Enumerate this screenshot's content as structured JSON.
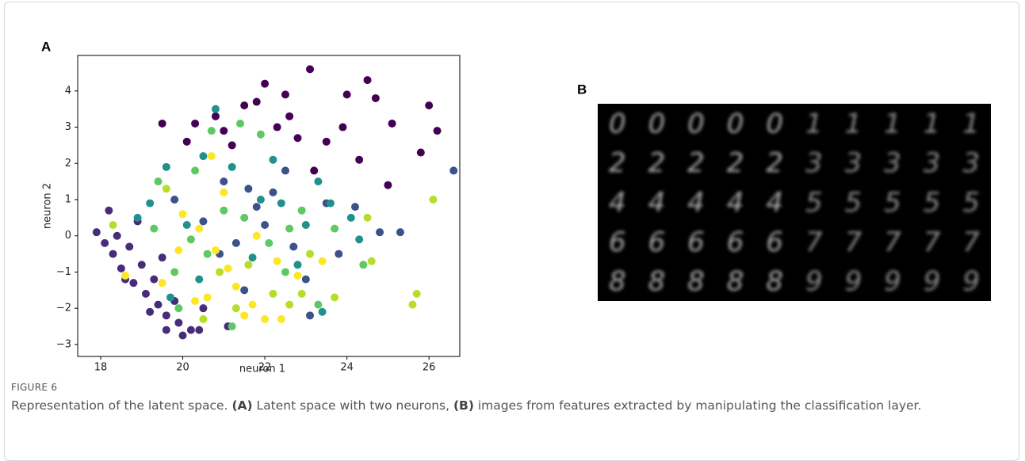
{
  "panel_a": {
    "label": "A",
    "chart_data": {
      "type": "scatter",
      "xlabel": "neuron 1",
      "ylabel": "neuron 2",
      "xlim": [
        17.44,
        26.75
      ],
      "ylim": [
        -3.33,
        4.98
      ],
      "xticks": [
        18,
        20,
        22,
        24,
        26
      ],
      "yticks": [
        {
          "value": -3,
          "label": "−3"
        },
        {
          "value": -2,
          "label": "−2"
        },
        {
          "value": -1,
          "label": "−1"
        },
        0,
        1,
        2,
        3,
        4
      ],
      "series": [
        {
          "color": "#440154",
          "x": [
            20.3,
            19.5,
            20.8,
            21.5,
            22,
            23.1,
            22.5,
            24,
            24.5,
            23.5,
            25.1,
            26,
            26.2,
            25.8,
            25,
            22.8,
            21.2,
            20.1,
            23.9,
            22.3,
            21.8,
            24.7,
            22.6,
            21,
            23.2,
            24.3
          ],
          "y": [
            3.1,
            3.1,
            3.3,
            3.6,
            4.2,
            4.6,
            3.9,
            3.9,
            4.3,
            2.6,
            3.1,
            3.6,
            2.9,
            2.3,
            1.4,
            2.7,
            2.5,
            2.6,
            3,
            3.0,
            3.7,
            3.8,
            3.3,
            2.9,
            1.8,
            2.1
          ]
        },
        {
          "color": "#472c7a",
          "x": [
            17.9,
            18.1,
            18.3,
            18.5,
            18.8,
            19.1,
            19.4,
            19.6,
            19.9,
            20.2,
            19.0,
            18.7,
            19.3,
            19.8,
            20.5,
            18.2,
            18.9,
            19.5,
            20.4,
            21.1,
            19.6,
            20,
            18.4,
            18.6,
            19.2
          ],
          "y": [
            0.1,
            -0.2,
            -0.5,
            -0.9,
            -1.3,
            -1.6,
            -1.9,
            -2.2,
            -2.4,
            -2.6,
            -0.8,
            -0.3,
            -1.2,
            -1.8,
            -2.0,
            0.7,
            0.4,
            -0.6,
            -2.6,
            -2.5,
            -2.6,
            -2.75,
            0.0,
            -1.2,
            -2.1
          ]
        },
        {
          "color": "#3b528b",
          "x": [
            21,
            21.8,
            22.5,
            23.5,
            24.2,
            24.8,
            25.3,
            26.6,
            23,
            22.7,
            21.3,
            20.5,
            19.8,
            21.6,
            23.1,
            22,
            20.9,
            23.8,
            22.2,
            21.5
          ],
          "y": [
            1.5,
            0.8,
            1.8,
            0.9,
            0.8,
            0.1,
            0.1,
            1.8,
            -1.2,
            -0.3,
            -0.2,
            0.4,
            1.0,
            1.3,
            -2.2,
            0.3,
            -0.5,
            -0.5,
            1.2,
            -1.5
          ]
        },
        {
          "color": "#21918c",
          "x": [
            20.8,
            20.5,
            21.2,
            22.2,
            23.3,
            24.1,
            23.6,
            20.1,
            19.2,
            18.9,
            21.7,
            22.4,
            23,
            24.3,
            20.4,
            19.7,
            21.9,
            22.8,
            19.6,
            23.4
          ],
          "y": [
            3.5,
            2.2,
            1.9,
            2.1,
            1.5,
            0.5,
            0.9,
            0.3,
            0.9,
            0.5,
            -0.6,
            0.9,
            0.3,
            -0.1,
            -1.2,
            -1.7,
            1.0,
            -0.8,
            1.9,
            -2.1
          ]
        },
        {
          "color": "#5ec962",
          "x": [
            20.7,
            21.4,
            20.3,
            21.5,
            22.1,
            22.9,
            23.7,
            24.4,
            19.8,
            20.6,
            19.4,
            19.3,
            21.2,
            22.5,
            23.3,
            20.2,
            21.9,
            22.6,
            19.9,
            21
          ],
          "y": [
            2.9,
            3.1,
            1.8,
            0.5,
            -0.2,
            0.7,
            0.2,
            -0.8,
            -1.0,
            -0.5,
            1.5,
            0.2,
            -2.5,
            -1.0,
            -1.9,
            -0.1,
            2.8,
            0.2,
            -2.0,
            0.7
          ]
        },
        {
          "color": "#b5de2b",
          "x": [
            25.7,
            25.6,
            26.1,
            24.6,
            24.5,
            23.7,
            22.6,
            19.6,
            20.9,
            22.2,
            21.6,
            23.1,
            20.5,
            18.3,
            21.3,
            22.9
          ],
          "y": [
            -1.6,
            -1.9,
            1.0,
            -0.7,
            0.5,
            -1.7,
            -1.9,
            1.3,
            -1.0,
            -1.6,
            -0.8,
            -0.5,
            -2.3,
            0.3,
            -2.0,
            -1.6
          ]
        },
        {
          "color": "#fde725",
          "x": [
            20,
            20.4,
            20.8,
            21.1,
            21.3,
            21.7,
            22,
            22.4,
            20.6,
            21.8,
            22.3,
            19.5,
            20.3,
            21.0,
            20.7,
            19.9,
            23.4,
            22.8,
            18.6,
            21.5
          ],
          "y": [
            0.6,
            0.2,
            -0.4,
            -0.9,
            -1.4,
            -1.9,
            -2.3,
            -2.3,
            -1.7,
            0.0,
            -0.7,
            -1.3,
            -1.8,
            1.2,
            2.2,
            -0.4,
            -0.7,
            -1.1,
            -1.1,
            -2.2
          ]
        }
      ]
    }
  },
  "panel_b": {
    "label": "B",
    "digits": [
      [
        "0",
        "0",
        "0",
        "0",
        "0",
        "1",
        "1",
        "1",
        "1",
        "1"
      ],
      [
        "2",
        "2",
        "2",
        "2",
        "2",
        "3",
        "3",
        "3",
        "3",
        "3"
      ],
      [
        "4",
        "4",
        "4",
        "4",
        "4",
        "5",
        "5",
        "5",
        "5",
        "5"
      ],
      [
        "6",
        "6",
        "6",
        "6",
        "6",
        "7",
        "7",
        "7",
        "7",
        "7"
      ],
      [
        "8",
        "8",
        "8",
        "8",
        "8",
        "9",
        "9",
        "9",
        "9",
        "9"
      ]
    ]
  },
  "caption": {
    "label": "FIGURE 6",
    "parts": [
      {
        "text": "Representation of the latent space. ",
        "bold": false
      },
      {
        "text": "(A)",
        "bold": true
      },
      {
        "text": " Latent space with two neurons, ",
        "bold": false
      },
      {
        "text": "(B)",
        "bold": true
      },
      {
        "text": " images from features extracted by manipulating the classification layer.",
        "bold": false
      }
    ]
  }
}
